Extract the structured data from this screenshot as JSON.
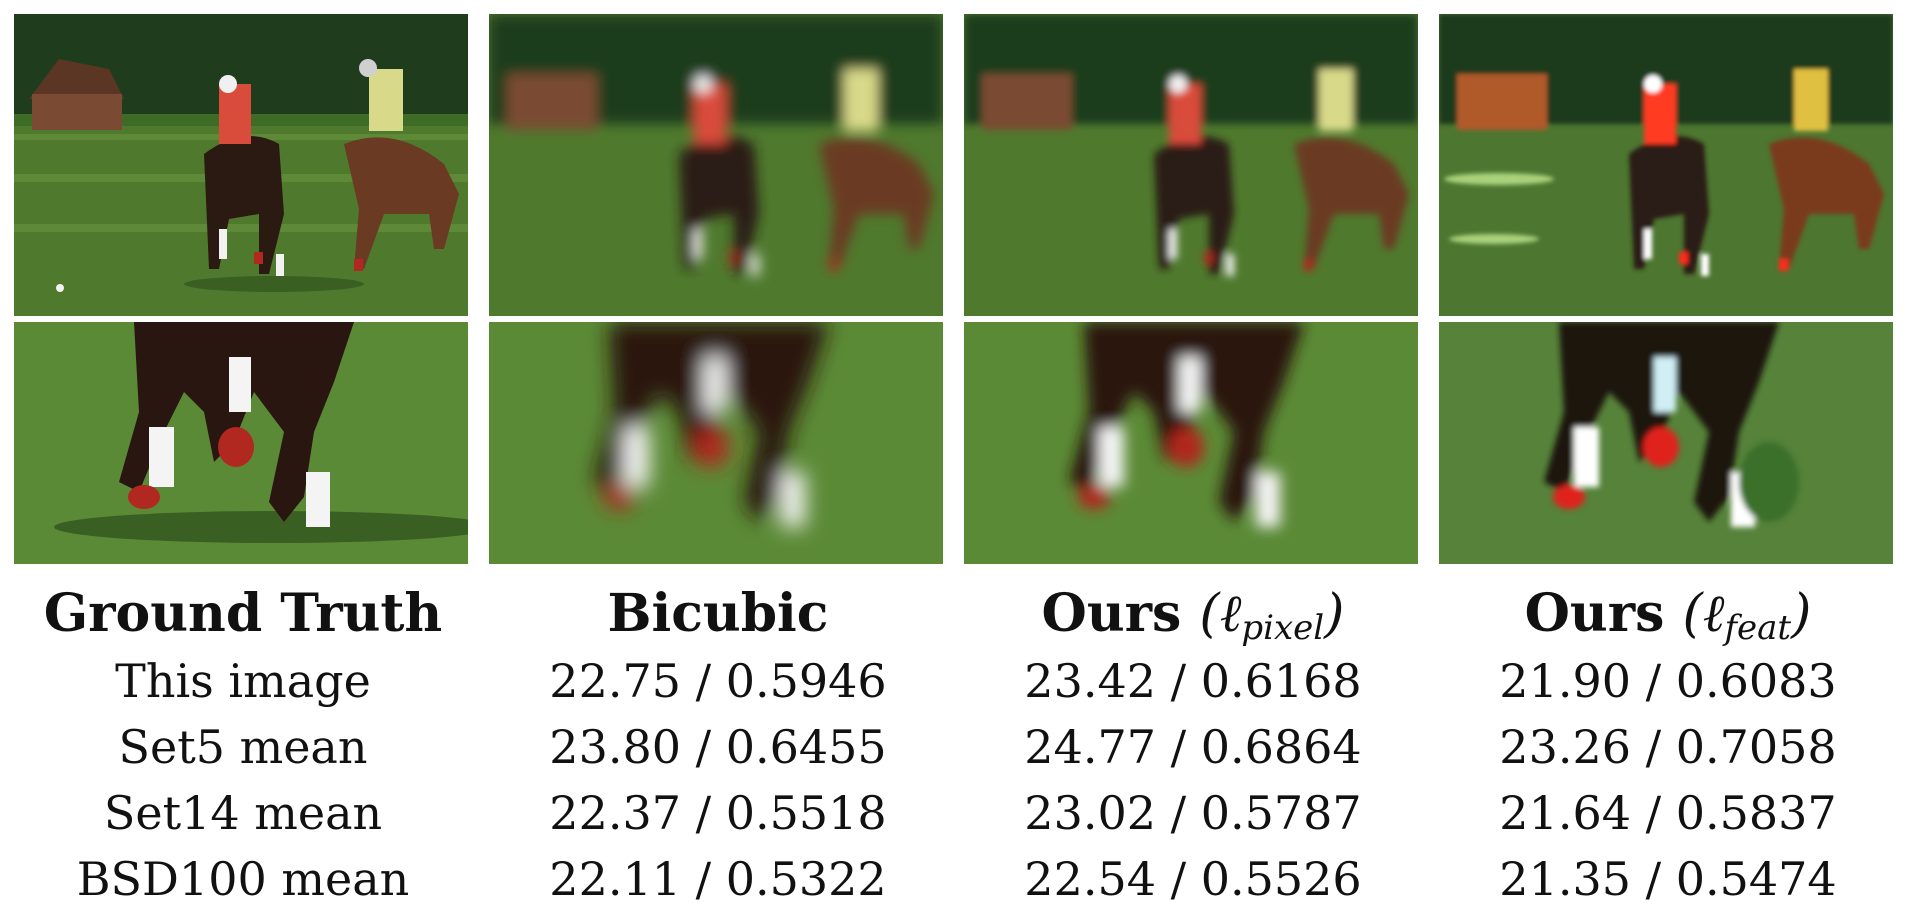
{
  "columns": [
    {
      "title": "Ground Truth",
      "variant": "",
      "rows": [
        "This image",
        "Set5 mean",
        "Set14 mean",
        "BSD100 mean"
      ]
    },
    {
      "title": "Bicubic",
      "variant": "",
      "rows": [
        "22.75 / 0.5946",
        "23.80 / 0.6455",
        "22.37 / 0.5518",
        "22.11 / 0.5322"
      ]
    },
    {
      "title": "Ours",
      "variant": "pixel",
      "rows": [
        "23.42 / 0.6168",
        "24.77 / 0.6864",
        "23.02 / 0.5787",
        "22.54 / 0.5526"
      ]
    },
    {
      "title": "Ours",
      "variant": "feat",
      "rows": [
        "21.90 / 0.6083",
        "23.26 / 0.7058",
        "21.64 / 0.5837",
        "21.35 / 0.5474"
      ]
    }
  ],
  "colors": {
    "grass": "#4f7a2e",
    "trees": "#1f3d1c",
    "horse": "#3a2216",
    "sock": "#f2f2f2",
    "wrap": "#b0281f"
  }
}
